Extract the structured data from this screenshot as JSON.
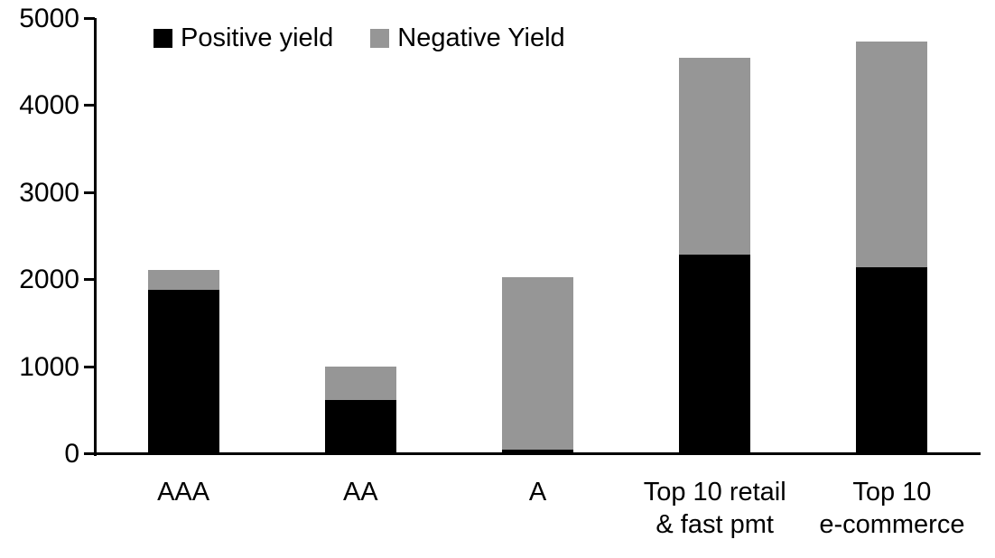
{
  "chart_data": {
    "type": "bar",
    "stacked": true,
    "title": "",
    "xlabel": "",
    "ylabel": "",
    "categories": [
      "AAA",
      "AA",
      "A",
      "Top 10 retail\n& fast pmt",
      "Top 10\ne-commerce"
    ],
    "series": [
      {
        "name": "Positive yield",
        "color": "#000000",
        "values": [
          1890,
          625,
          50,
          2290,
          2150
        ]
      },
      {
        "name": "Negative Yield",
        "color": "#969696",
        "values": [
          230,
          380,
          1980,
          2260,
          2590
        ]
      }
    ],
    "totals": [
      2120,
      1005,
      2030,
      4550,
      4740
    ],
    "ylim": [
      0,
      5000
    ],
    "yticks": [
      0,
      1000,
      2000,
      3000,
      4000,
      5000
    ],
    "grid": false,
    "legend_position": "top",
    "axis_color": "#000000",
    "background_color": "#ffffff"
  }
}
